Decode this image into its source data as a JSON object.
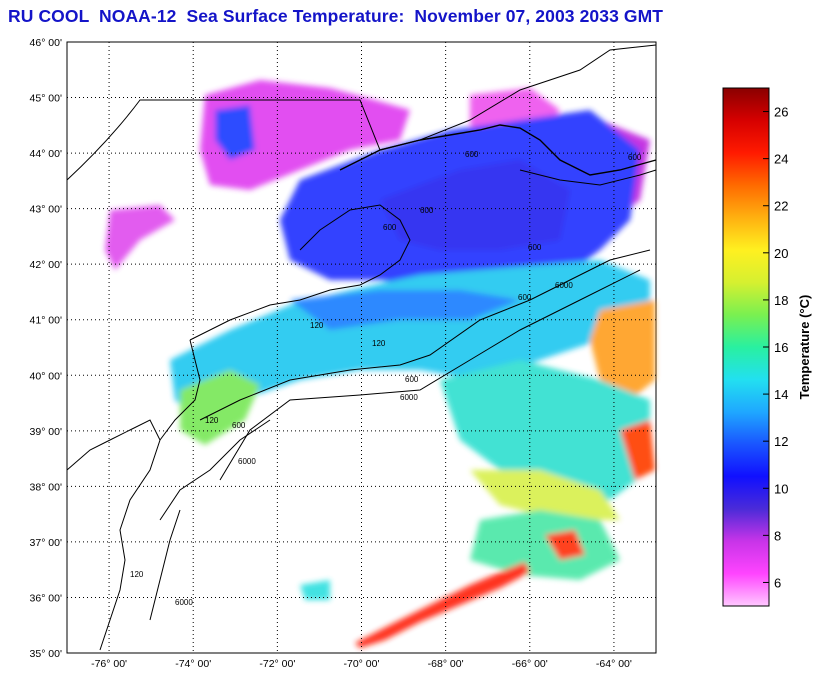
{
  "title": "RU COOL  NOAA-12  Sea Surface Temperature:  November 07, 2003 2033 GMT",
  "map": {
    "lon_range": [
      -77,
      -63
    ],
    "lat_range": [
      35,
      46
    ],
    "lat_labels": [
      "35° 00'",
      "36° 00'",
      "37° 00'",
      "38° 00'",
      "39° 00'",
      "40° 00'",
      "41° 00'",
      "42° 00'",
      "43° 00'",
      "44° 00'",
      "45° 00'",
      "46° 00'"
    ],
    "lat_values": [
      35,
      36,
      37,
      38,
      39,
      40,
      41,
      42,
      43,
      44,
      45,
      46
    ],
    "lon_labels": [
      "-76° 00'",
      "-74° 00'",
      "-72° 00'",
      "-70° 00'",
      "-68° 00'",
      "-66° 00'",
      "-64° 00'"
    ],
    "lon_values": [
      -76,
      -74,
      -72,
      -70,
      -68,
      -66,
      -64
    ],
    "grid": true,
    "contour_labels": [
      "600",
      "600",
      "600",
      "600",
      "6000",
      "600",
      "120",
      "120",
      "600",
      "6000",
      "120",
      "600",
      "6000",
      "120",
      "6000",
      "600"
    ]
  },
  "colorbar": {
    "label": "Temperature (°C)",
    "min": 5,
    "max": 27,
    "ticks": [
      6,
      8,
      10,
      12,
      14,
      16,
      18,
      20,
      22,
      24,
      26
    ],
    "colors": [
      "#ffc8ff",
      "#ff44ff",
      "#c834e8",
      "#4b2bd8",
      "#1010ff",
      "#1a55ff",
      "#1fa8ff",
      "#22e0f0",
      "#29f0a0",
      "#7af050",
      "#d6f030",
      "#fff020",
      "#ffb010",
      "#ff6a00",
      "#ff1a00",
      "#d60000",
      "#8a0000"
    ]
  }
}
